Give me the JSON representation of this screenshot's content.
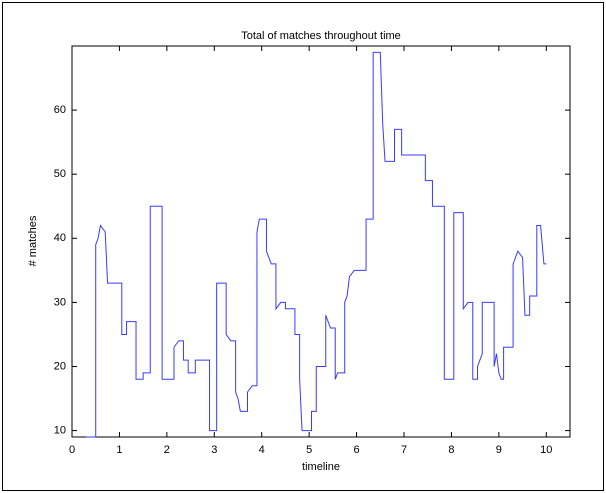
{
  "chart_data": {
    "type": "line",
    "title": "Total of matches throughout time",
    "x_label": "timeline",
    "y_label": "# matches",
    "x": [
      0.3,
      0.5,
      0.5,
      0.55,
      0.6,
      0.7,
      0.75,
      1.05,
      1.05,
      1.15,
      1.15,
      1.35,
      1.35,
      1.5,
      1.5,
      1.65,
      1.65,
      1.9,
      1.9,
      2.15,
      2.15,
      2.25,
      2.35,
      2.35,
      2.45,
      2.45,
      2.6,
      2.6,
      2.9,
      2.9,
      3.05,
      3.05,
      3.25,
      3.25,
      3.35,
      3.45,
      3.45,
      3.5,
      3.55,
      3.7,
      3.7,
      3.8,
      3.9,
      3.9,
      3.95,
      4.1,
      4.1,
      4.2,
      4.3,
      4.3,
      4.4,
      4.5,
      4.5,
      4.7,
      4.7,
      4.8,
      4.8,
      4.85,
      5.05,
      5.05,
      5.15,
      5.15,
      5.35,
      5.35,
      5.4,
      5.45,
      5.55,
      5.55,
      5.6,
      5.75,
      5.75,
      5.8,
      5.85,
      5.95,
      6.2,
      6.2,
      6.35,
      6.35,
      6.5,
      6.55,
      6.6,
      6.8,
      6.8,
      6.95,
      6.95,
      7.45,
      7.45,
      7.6,
      7.6,
      7.85,
      7.85,
      8.05,
      8.05,
      8.25,
      8.25,
      8.35,
      8.45,
      8.45,
      8.55,
      8.55,
      8.65,
      8.65,
      8.9,
      8.9,
      8.95,
      9.0,
      9.05,
      9.1,
      9.1,
      9.3,
      9.3,
      9.4,
      9.5,
      9.55,
      9.65,
      9.65,
      9.8,
      9.8,
      9.88,
      9.95,
      10.0
    ],
    "series": [
      {
        "name": "matches",
        "color": "#3a3aff",
        "values": [
          9,
          9,
          39,
          40,
          42,
          41,
          33,
          33,
          25,
          25,
          27,
          27,
          18,
          18,
          19,
          19,
          45,
          45,
          18,
          18,
          23,
          24,
          24,
          21,
          21,
          19,
          19,
          21,
          21,
          10,
          10,
          33,
          33,
          25,
          24,
          24,
          16,
          15,
          13,
          13,
          16,
          17,
          17,
          41,
          43,
          43,
          38,
          36,
          36,
          29,
          30,
          30,
          29,
          29,
          25,
          25,
          18,
          10,
          10,
          13,
          13,
          20,
          20,
          28,
          27,
          26,
          26,
          18,
          19,
          19,
          30,
          31,
          34,
          35,
          35,
          43,
          43,
          69,
          69,
          58,
          52,
          52,
          57,
          57,
          53,
          53,
          49,
          49,
          45,
          45,
          18,
          18,
          44,
          44,
          29,
          30,
          30,
          18,
          18,
          20,
          22,
          30,
          30,
          20,
          22,
          19,
          18,
          18,
          23,
          23,
          36,
          38,
          37,
          28,
          28,
          31,
          31,
          42,
          42,
          36,
          36
        ]
      }
    ],
    "xlim": [
      0,
      10.5
    ],
    "ylim": [
      9,
      70
    ],
    "xticks": [
      0,
      1,
      2,
      3,
      4,
      5,
      6,
      7,
      8,
      9,
      10
    ],
    "yticks": [
      10,
      20,
      30,
      40,
      50,
      60
    ]
  }
}
